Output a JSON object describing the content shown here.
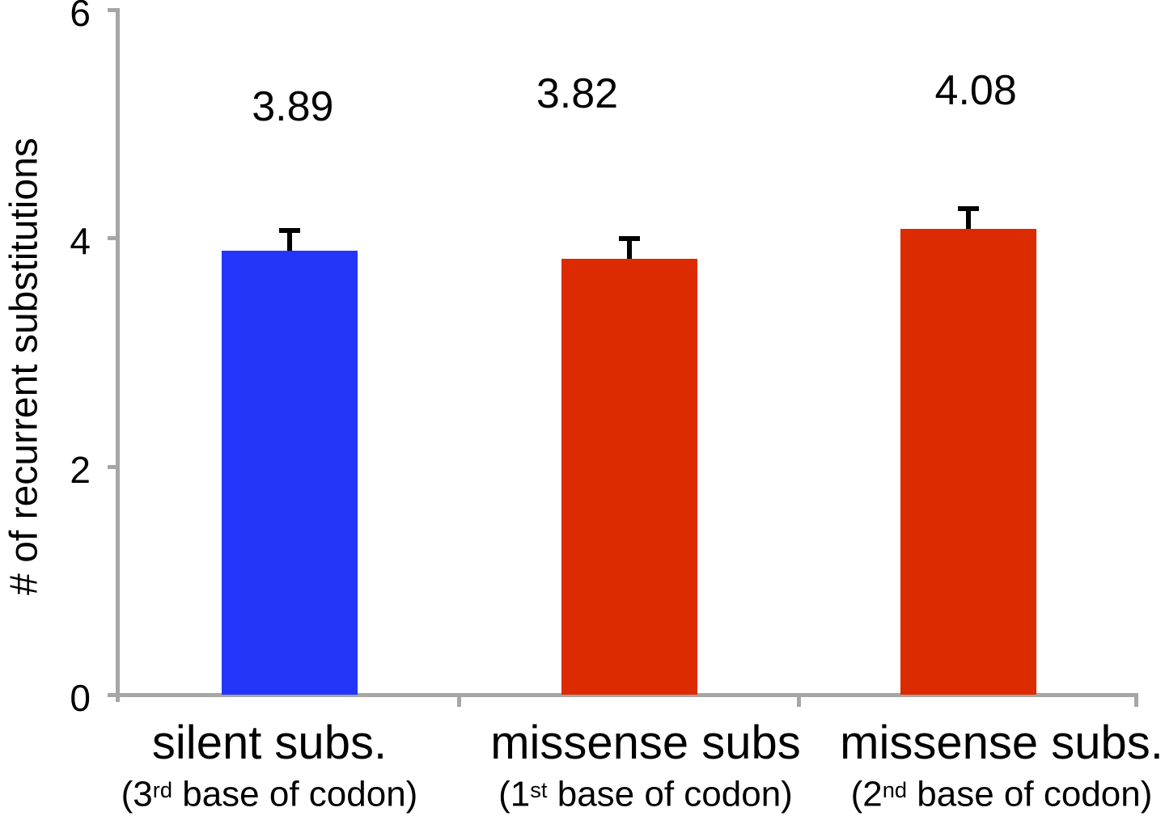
{
  "chart_data": {
    "type": "bar",
    "title": "",
    "xlabel": "",
    "ylabel": "# of recurrent substitutions",
    "ylim": [
      0,
      6
    ],
    "yticks": [
      0,
      2,
      4,
      6
    ],
    "grid": false,
    "legend": false,
    "categories": [
      {
        "main": "silent subs.",
        "sub_prefix": "(3",
        "sub_sup": "rd",
        "sub_rest": " base of codon)"
      },
      {
        "main": "missense subs",
        "sub_prefix": "(1",
        "sub_sup": "st",
        "sub_rest": " base of codon)"
      },
      {
        "main": "missense subs.",
        "sub_prefix": "(2",
        "sub_sup": "nd",
        "sub_rest": " base of codon)"
      }
    ],
    "values": [
      3.89,
      3.82,
      4.08
    ],
    "value_labels": [
      "3.89",
      "3.82",
      "4.08"
    ],
    "errors_upper": [
      0.2,
      0.2,
      0.2
    ],
    "bar_colors": [
      "#2235f9",
      "#dc2b00",
      "#dc2b00"
    ],
    "axis_color": "#a6a6a6",
    "error_bar_color": "#000000",
    "text_color": "#000000"
  }
}
